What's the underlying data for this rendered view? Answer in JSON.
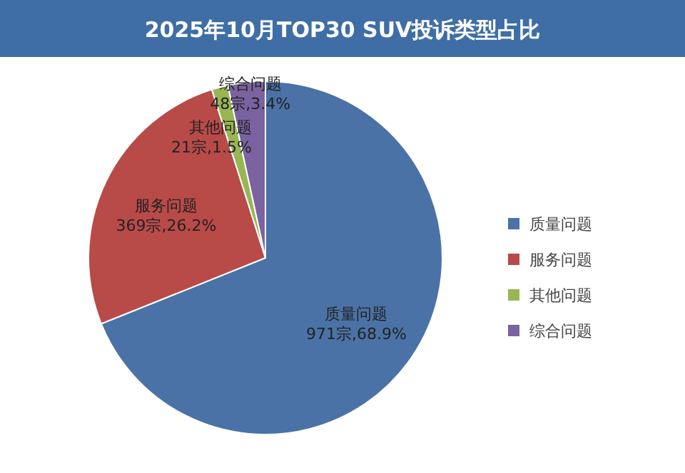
{
  "chart_data": {
    "type": "pie",
    "title": "2025年10月TOP30 SUV投诉类型占比",
    "categories": [
      "质量问题",
      "服务问题",
      "其他问题",
      "综合问题"
    ],
    "values": [
      971,
      369,
      21,
      48
    ],
    "colors": [
      "#4a72a6",
      "#b84a48",
      "#98b654",
      "#7b62a0"
    ],
    "value_labels": [
      "971宗,68.9%",
      "369宗,26.2%",
      "21宗,1.5%",
      "48宗,3.4%"
    ],
    "legend": "right"
  }
}
